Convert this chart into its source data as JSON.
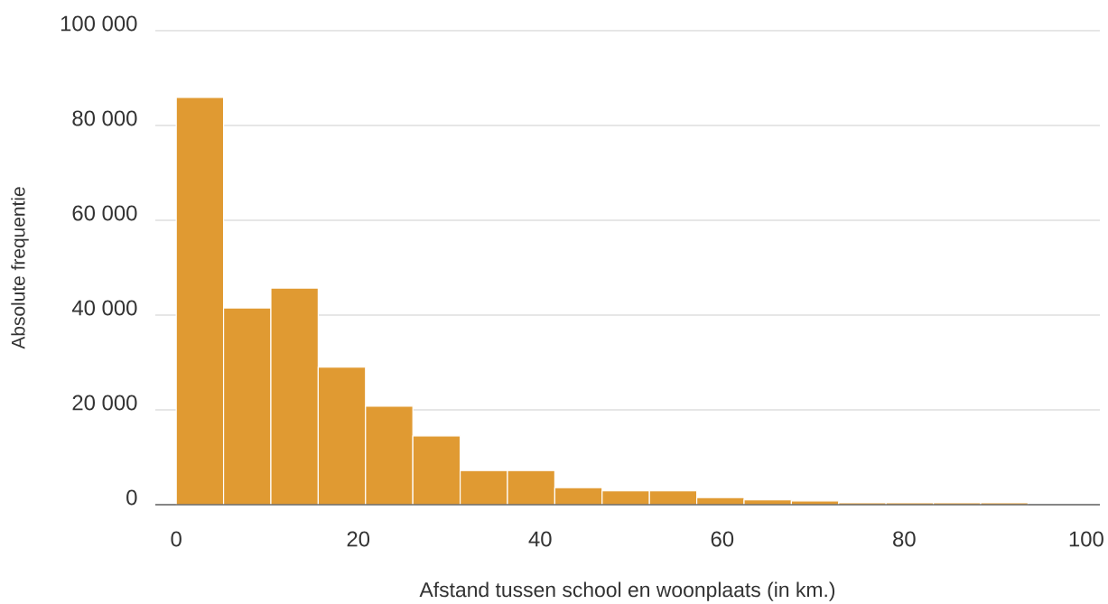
{
  "chart_data": {
    "type": "histogram",
    "xlabel": "Afstand tussen school en woonplaats (in km.)",
    "ylabel": "Absolute frequentie",
    "bins": [
      0,
      5.2,
      10.4,
      15.6,
      20.8,
      26,
      31.2,
      36.4,
      41.6,
      46.8,
      52,
      57.2,
      62.4,
      67.6,
      72.8,
      78,
      83.2,
      88.4,
      93.6
    ],
    "values": [
      85900,
      41500,
      45700,
      29000,
      20800,
      14500,
      7200,
      7200,
      3600,
      2900,
      2900,
      1500,
      1000,
      800,
      400,
      400,
      400,
      400
    ],
    "color": "#e09a32",
    "xlim": [
      -2.3,
      101.5
    ],
    "xticks": [
      0,
      20,
      40,
      60,
      80,
      100
    ],
    "ylim": [
      0,
      100000
    ],
    "yticks": [
      {
        "value": 0,
        "label": "0"
      },
      {
        "value": 20000,
        "label": "20 000"
      },
      {
        "value": 40000,
        "label": "40 000"
      },
      {
        "value": 60000,
        "label": "60 000"
      },
      {
        "value": 80000,
        "label": "80 000"
      },
      {
        "value": 100000,
        "label": "100 000"
      }
    ],
    "grid": "y"
  }
}
